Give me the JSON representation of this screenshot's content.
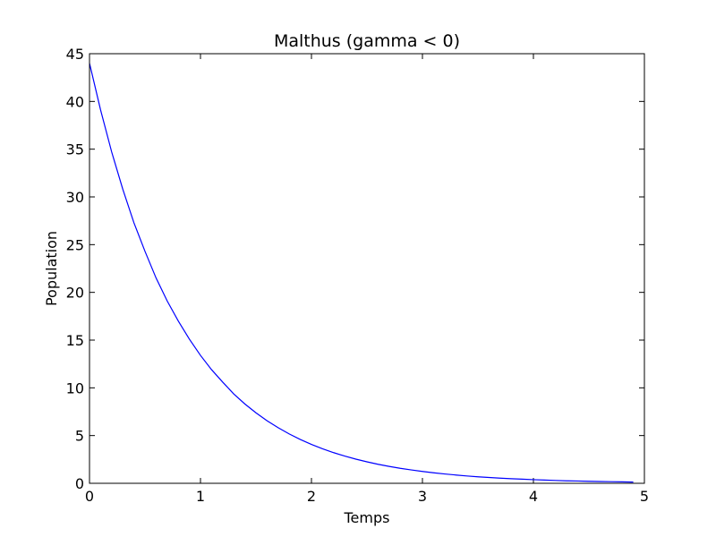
{
  "chart_data": {
    "type": "line",
    "title": "Malthus (gamma < 0)",
    "xlabel": "Temps",
    "ylabel": "Population",
    "xlim": [
      0,
      5
    ],
    "ylim": [
      0,
      45
    ],
    "xticks": [
      0,
      1,
      2,
      3,
      4,
      5
    ],
    "yticks": [
      0,
      5,
      10,
      15,
      20,
      25,
      30,
      35,
      40,
      45
    ],
    "grid": false,
    "legend": "none",
    "series": [
      {
        "color": "#0000ff",
        "x": [
          0,
          0.1,
          0.2,
          0.3,
          0.4,
          0.5,
          0.6,
          0.7,
          0.8,
          0.9,
          1.0,
          1.1,
          1.2,
          1.3,
          1.4,
          1.5,
          1.6,
          1.7,
          1.8,
          1.9,
          2.0,
          2.1,
          2.2,
          2.3,
          2.4,
          2.5,
          2.6,
          2.7,
          2.8,
          2.9,
          3.0,
          3.1,
          3.2,
          3.3,
          3.4,
          3.5,
          3.6,
          3.7,
          3.8,
          3.9,
          4.0,
          4.1,
          4.2,
          4.3,
          4.4,
          4.5,
          4.6,
          4.7,
          4.8,
          4.9
        ],
        "y": [
          44.0,
          39.1,
          34.7,
          30.8,
          27.3,
          24.3,
          21.5,
          19.1,
          17.0,
          15.1,
          13.4,
          11.9,
          10.6,
          9.36,
          8.31,
          7.38,
          6.55,
          5.82,
          5.17,
          4.59,
          4.07,
          3.62,
          3.21,
          2.85,
          2.53,
          2.25,
          1.99,
          1.77,
          1.57,
          1.4,
          1.24,
          1.1,
          0.98,
          0.87,
          0.77,
          0.68,
          0.61,
          0.54,
          0.48,
          0.43,
          0.38,
          0.34,
          0.3,
          0.26,
          0.24,
          0.21,
          0.19,
          0.17,
          0.15,
          0.13
        ]
      }
    ]
  }
}
